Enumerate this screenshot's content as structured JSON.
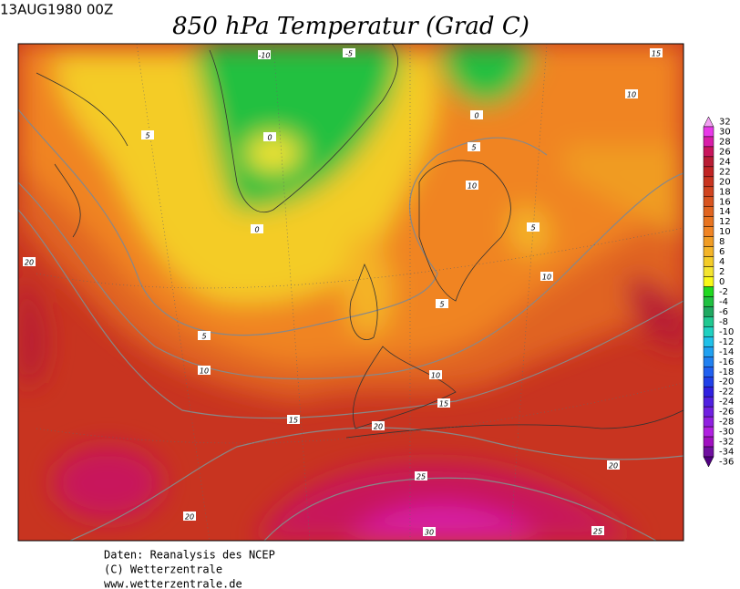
{
  "header": {
    "timestamp": "13AUG1980 00Z",
    "title": "850 hPa Temperatur (Grad C)"
  },
  "colorbar": {
    "levels": [
      32,
      30,
      28,
      26,
      24,
      22,
      20,
      18,
      16,
      14,
      12,
      10,
      8,
      6,
      4,
      2,
      0,
      -2,
      -4,
      -6,
      -8,
      -10,
      -12,
      -14,
      -16,
      -18,
      -20,
      -22,
      -24,
      -26,
      -28,
      -30,
      -32,
      -34,
      -36
    ],
    "colors": [
      "#f4a0f4",
      "#e838e8",
      "#d81ca8",
      "#c8145c",
      "#b81c34",
      "#c02424",
      "#c83420",
      "#d04420",
      "#d85420",
      "#e06420",
      "#e87420",
      "#f08424",
      "#f09c24",
      "#f4b428",
      "#f4cc28",
      "#f4e430",
      "#f8f818",
      "#20d820",
      "#20c040",
      "#20a860",
      "#20c890",
      "#20d0c0",
      "#20c0e8",
      "#20a0f0",
      "#2080f0",
      "#2060f0",
      "#2040e8",
      "#3020e0",
      "#5020e0",
      "#7020e0",
      "#9020e0",
      "#b020e0",
      "#a010c0",
      "#7010a0",
      "#500080"
    ]
  },
  "contour_labels": [
    -10,
    -5,
    0,
    0,
    0,
    5,
    5,
    5,
    5,
    5,
    10,
    10,
    10,
    10,
    10,
    15,
    15,
    15,
    20,
    20,
    20,
    20,
    25,
    25,
    30
  ],
  "footer": [
    "Daten: Reanalysis des NCEP",
    "(C) Wetterzentrale",
    "www.wetterzentrale.de"
  ]
}
